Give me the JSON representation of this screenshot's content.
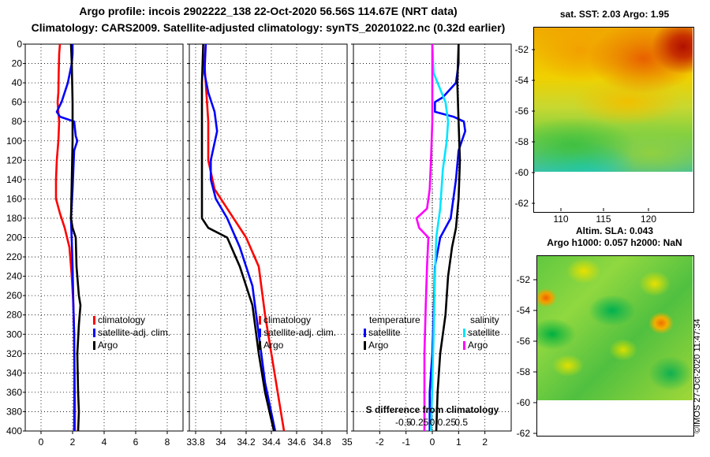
{
  "header": {
    "line1": "Argo profile: incois 2902222_138 22-Oct-2020 56.56S 114.67E (NRT data)",
    "line2": "Climatology: CARS2009. Satellite-adjusted climatology: synTS_20201022.nc (0.32d earlier)"
  },
  "colors": {
    "climatology": "#ff0000",
    "satellite": "#0000ff",
    "argo": "#000000",
    "cyan": "#00e5ff",
    "magenta": "#ff00ff"
  },
  "chart_data": [
    {
      "type": "line",
      "title": "Temperature profile",
      "xlim": [
        -1,
        9
      ],
      "ylim": [
        0,
        400
      ],
      "xticks": [
        0,
        2,
        4,
        6,
        8
      ],
      "yticks": [
        0,
        20,
        40,
        60,
        80,
        100,
        120,
        140,
        160,
        180,
        200,
        220,
        240,
        260,
        280,
        300,
        320,
        340,
        360,
        380,
        400
      ],
      "legend": [
        "climatology",
        "satellite-adj. clim.",
        "Argo"
      ],
      "series": [
        {
          "name": "climatology",
          "color": "#ff0000",
          "points": [
            [
              1.2,
              0
            ],
            [
              1.15,
              10
            ],
            [
              1.12,
              30
            ],
            [
              1.1,
              50
            ],
            [
              1.05,
              60
            ],
            [
              1.1,
              70
            ],
            [
              1.15,
              80
            ],
            [
              1.1,
              100
            ],
            [
              1.0,
              120
            ],
            [
              0.95,
              140
            ],
            [
              0.95,
              160
            ],
            [
              1.2,
              175
            ],
            [
              1.5,
              190
            ],
            [
              1.8,
              210
            ],
            [
              1.95,
              240
            ],
            [
              2.05,
              270
            ],
            [
              2.1,
              300
            ],
            [
              2.12,
              340
            ],
            [
              2.15,
              370
            ],
            [
              2.15,
              400
            ]
          ]
        },
        {
          "name": "satellite-adj. clim.",
          "color": "#0000ff",
          "points": [
            [
              2.0,
              0
            ],
            [
              2.0,
              10
            ],
            [
              1.95,
              20
            ],
            [
              1.7,
              40
            ],
            [
              1.3,
              60
            ],
            [
              1.0,
              70
            ],
            [
              1.2,
              75
            ],
            [
              2.1,
              80
            ],
            [
              2.2,
              95
            ],
            [
              2.3,
              100
            ],
            [
              2.1,
              110
            ],
            [
              2.0,
              150
            ],
            [
              1.9,
              180
            ],
            [
              2.0,
              230
            ],
            [
              2.05,
              270
            ],
            [
              2.1,
              300
            ],
            [
              2.12,
              340
            ],
            [
              2.1,
              400
            ]
          ]
        },
        {
          "name": "Argo",
          "color": "#000000",
          "points": [
            [
              1.9,
              0
            ],
            [
              1.95,
              20
            ],
            [
              2.0,
              60
            ],
            [
              2.0,
              100
            ],
            [
              1.95,
              140
            ],
            [
              1.9,
              180
            ],
            [
              2.0,
              190
            ],
            [
              2.2,
              200
            ],
            [
              2.25,
              230
            ],
            [
              2.4,
              260
            ],
            [
              2.5,
              270
            ],
            [
              2.4,
              290
            ],
            [
              2.3,
              320
            ],
            [
              2.35,
              360
            ],
            [
              2.4,
              380
            ],
            [
              2.35,
              400
            ]
          ]
        }
      ]
    },
    {
      "type": "line",
      "title": "Salinity profile",
      "xlim": [
        33.75,
        35.0
      ],
      "ylim": [
        0,
        400
      ],
      "xticks": [
        33.8,
        34,
        34.2,
        34.4,
        34.6,
        34.8,
        35
      ],
      "xticklabels": [
        "33.8",
        "34",
        "34.2",
        "34.4",
        "34.6",
        "34.8",
        "35"
      ],
      "legend": [
        "climatology",
        "satellite-adj. clim.",
        "Argo"
      ],
      "series": [
        {
          "name": "climatology",
          "color": "#ff0000",
          "points": [
            [
              33.88,
              0
            ],
            [
              33.87,
              20
            ],
            [
              33.88,
              40
            ],
            [
              33.9,
              80
            ],
            [
              33.9,
              120
            ],
            [
              33.95,
              150
            ],
            [
              34.05,
              170
            ],
            [
              34.2,
              200
            ],
            [
              34.3,
              230
            ],
            [
              34.35,
              280
            ],
            [
              34.4,
              320
            ],
            [
              34.45,
              360
            ],
            [
              34.5,
              400
            ]
          ]
        },
        {
          "name": "satellite-adj. clim.",
          "color": "#0000ff",
          "points": [
            [
              33.88,
              0
            ],
            [
              33.87,
              30
            ],
            [
              33.9,
              50
            ],
            [
              33.95,
              70
            ],
            [
              33.97,
              90
            ],
            [
              33.92,
              120
            ],
            [
              33.92,
              140
            ],
            [
              33.96,
              160
            ],
            [
              34.05,
              180
            ],
            [
              34.15,
              210
            ],
            [
              34.25,
              250
            ],
            [
              34.3,
              300
            ],
            [
              34.35,
              350
            ],
            [
              34.43,
              400
            ]
          ]
        },
        {
          "name": "Argo",
          "color": "#000000",
          "points": [
            [
              33.86,
              0
            ],
            [
              33.85,
              40
            ],
            [
              33.85,
              100
            ],
            [
              33.85,
              150
            ],
            [
              33.85,
              180
            ],
            [
              33.9,
              190
            ],
            [
              34.05,
              200
            ],
            [
              34.15,
              230
            ],
            [
              34.25,
              270
            ],
            [
              34.3,
              320
            ],
            [
              34.35,
              360
            ],
            [
              34.42,
              400
            ]
          ]
        }
      ]
    },
    {
      "type": "line",
      "title": "Difference from climatology",
      "xlim": [
        -3,
        3
      ],
      "ylim": [
        0,
        400
      ],
      "xticks": [
        -2,
        -1,
        0,
        1,
        2
      ],
      "xticklabels": [
        "-2",
        "-1",
        "0",
        "1",
        "2"
      ],
      "xlabel": "S difference from climatology",
      "s_tick_labels": [
        "-0.5",
        "-0.25",
        "0",
        "0.25",
        "0.5"
      ],
      "legend_left_title": "temperature",
      "legend_right_title": "salinity",
      "legend_left": [
        "satellite",
        "Argo"
      ],
      "legend_right": [
        "satellite",
        "Argo"
      ],
      "series": [
        {
          "name": "temperature satellite",
          "color": "#0000ff",
          "points": [
            [
              1.0,
              0
            ],
            [
              1.0,
              20
            ],
            [
              0.9,
              40
            ],
            [
              0.4,
              55
            ],
            [
              0.1,
              60
            ],
            [
              0.1,
              70
            ],
            [
              0.8,
              75
            ],
            [
              1.2,
              80
            ],
            [
              1.25,
              90
            ],
            [
              1.0,
              110
            ],
            [
              0.9,
              140
            ],
            [
              0.7,
              180
            ],
            [
              0.3,
              200
            ],
            [
              0.1,
              230
            ],
            [
              0.05,
              280
            ],
            [
              0.0,
              320
            ],
            [
              -0.1,
              360
            ],
            [
              -0.1,
              400
            ]
          ]
        },
        {
          "name": "temperature Argo",
          "color": "#000000",
          "points": [
            [
              1.0,
              0
            ],
            [
              0.95,
              40
            ],
            [
              1.0,
              80
            ],
            [
              1.05,
              120
            ],
            [
              1.0,
              160
            ],
            [
              0.9,
              190
            ],
            [
              0.75,
              210
            ],
            [
              0.6,
              240
            ],
            [
              0.5,
              280
            ],
            [
              0.3,
              320
            ],
            [
              0.2,
              360
            ],
            [
              0.15,
              400
            ]
          ]
        },
        {
          "name": "salinity satellite",
          "color": "#00e5ff",
          "points": [
            [
              0.0,
              0
            ],
            [
              0.05,
              30
            ],
            [
              0.2,
              40
            ],
            [
              0.5,
              60
            ],
            [
              0.6,
              80
            ],
            [
              0.55,
              100
            ],
            [
              0.4,
              130
            ],
            [
              0.3,
              170
            ],
            [
              0.15,
              200
            ],
            [
              0.1,
              240
            ],
            [
              0.05,
              300
            ],
            [
              0.0,
              350
            ],
            [
              -0.05,
              400
            ]
          ]
        },
        {
          "name": "salinity Argo",
          "color": "#ff00ff",
          "points": [
            [
              0.0,
              0
            ],
            [
              0.0,
              40
            ],
            [
              0.0,
              80
            ],
            [
              -0.05,
              120
            ],
            [
              -0.1,
              150
            ],
            [
              -0.2,
              170
            ],
            [
              -0.6,
              180
            ],
            [
              -0.5,
              190
            ],
            [
              -0.15,
              200
            ],
            [
              -0.2,
              230
            ],
            [
              -0.25,
              270
            ],
            [
              -0.3,
              320
            ],
            [
              -0.3,
              400
            ]
          ]
        }
      ]
    }
  ],
  "sst_panel": {
    "title": "sat. SST: 2.03 Argo: 1.95",
    "yticks": [
      "-52",
      "-54",
      "-56",
      "-58",
      "-60",
      "-62"
    ],
    "xticks": [
      "110",
      "115",
      "120"
    ]
  },
  "sla_panel": {
    "title1": "Altim. SLA: 0.043",
    "title2": "Argo h1000: 0.057 h2000: NaN",
    "yticks": [
      "-52",
      "-54",
      "-56",
      "-58",
      "-60",
      "-62"
    ]
  },
  "credit": "©IMOS 27-Oct-2020 11:47:34"
}
